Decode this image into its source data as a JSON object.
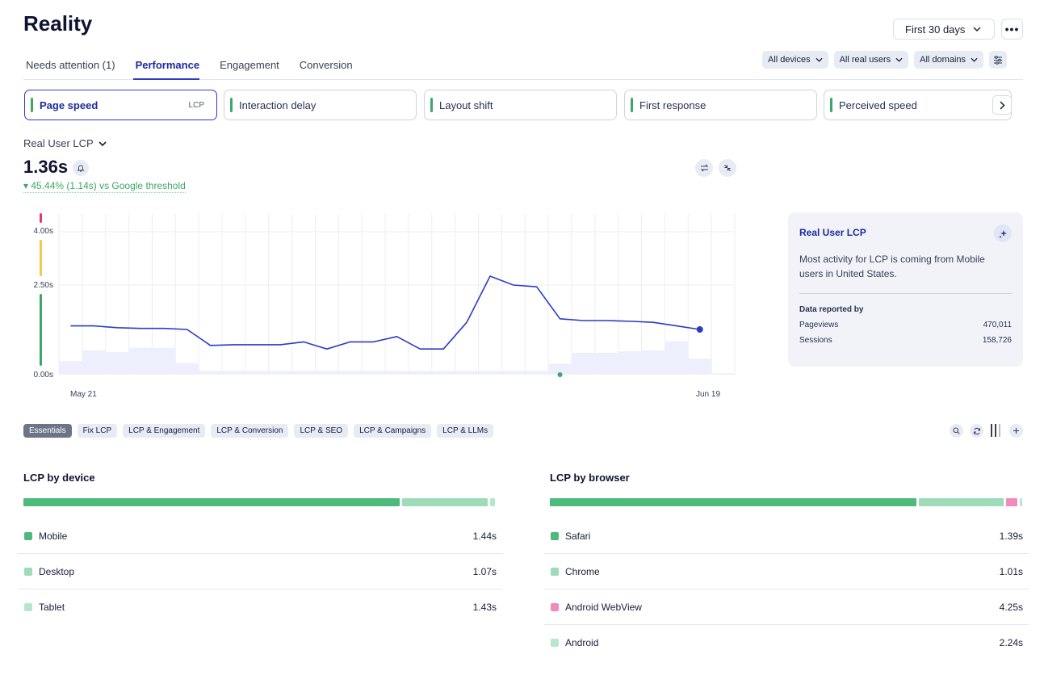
{
  "page_title": "Reality",
  "period_label": "First 30 days",
  "more_label": "•••",
  "tabs": [
    {
      "label": "Needs attention (1)",
      "active": false
    },
    {
      "label": "Performance",
      "active": true
    },
    {
      "label": "Engagement",
      "active": false
    },
    {
      "label": "Conversion",
      "active": false
    }
  ],
  "filters": {
    "devices": "All devices",
    "users": "All real users",
    "domains": "All domains"
  },
  "metric_cards": [
    {
      "label": "Page speed",
      "tag": "LCP",
      "active": true
    },
    {
      "label": "Interaction delay",
      "active": false
    },
    {
      "label": "Layout shift",
      "active": false
    },
    {
      "label": "First response",
      "active": false
    },
    {
      "label": "Perceived speed",
      "active": false
    }
  ],
  "metric_selector": "Real User LCP",
  "metric_value": "1.36s",
  "metric_delta": "45.44% (1.14s) vs Google threshold",
  "chart_data": {
    "type": "line",
    "x_first_label": "May 21",
    "x_last_label": "Jun 19",
    "y_ticks": [
      "4.00s",
      "2.50s",
      "0.00s"
    ],
    "ylim": [
      0,
      4.5
    ],
    "series": [
      {
        "values": [
          1.35,
          1.35,
          1.3,
          1.28,
          1.28,
          1.25,
          0.8,
          0.82,
          0.82,
          0.82,
          0.9,
          0.7,
          0.9,
          0.9,
          1.05,
          0.7,
          0.7,
          1.45,
          2.75,
          2.5,
          2.45,
          1.55,
          1.5,
          1.5,
          1.48,
          1.45,
          1.35,
          1.25
        ]
      }
    ],
    "volume": [
      0.35,
      0.65,
      0.6,
      0.72,
      0.72,
      0.3,
      0.08,
      0.08,
      0.08,
      0.08,
      0.08,
      0.08,
      0.08,
      0.08,
      0.08,
      0.08,
      0.08,
      0.08,
      0.08,
      0.08,
      0.08,
      0.28,
      0.58,
      0.58,
      0.62,
      0.65,
      0.9,
      0.42
    ],
    "threshold_colors": [
      "#e03a6e",
      "#f2c94c",
      "#3aa867"
    ]
  },
  "insight": {
    "title": "Real User LCP",
    "text": "Most activity for LCP is coming from Mobile users in United States.",
    "reported_label": "Data reported by",
    "rows": [
      {
        "label": "Pageviews",
        "value": "470,011"
      },
      {
        "label": "Sessions",
        "value": "158,726"
      }
    ]
  },
  "views": [
    "Essentials",
    "Fix LCP",
    "LCP & Engagement",
    "LCP & Conversion",
    "LCP & SEO",
    "LCP & Campaigns",
    "LCP & LLMs"
  ],
  "by_device": {
    "title": "LCP by device",
    "share": [
      0.79,
      0.18,
      0.01
    ],
    "rows": [
      {
        "label": "Mobile",
        "value": "1.44s",
        "color": "#4dba7b"
      },
      {
        "label": "Desktop",
        "value": "1.07s",
        "color": "#9ddbb9"
      },
      {
        "label": "Tablet",
        "value": "1.43s",
        "color": "#b8e6cb"
      }
    ]
  },
  "by_browser": {
    "title": "LCP by browser",
    "share": [
      0.78,
      0.18,
      0.025,
      0.005
    ],
    "rows": [
      {
        "label": "Safari",
        "value": "1.39s",
        "color": "#4dba7b"
      },
      {
        "label": "Chrome",
        "value": "1.01s",
        "color": "#9ddbb9"
      },
      {
        "label": "Android WebView",
        "value": "4.25s",
        "color": "#f08bbb"
      },
      {
        "label": "Android",
        "value": "2.24s",
        "color": "#b8e6cb"
      }
    ]
  }
}
